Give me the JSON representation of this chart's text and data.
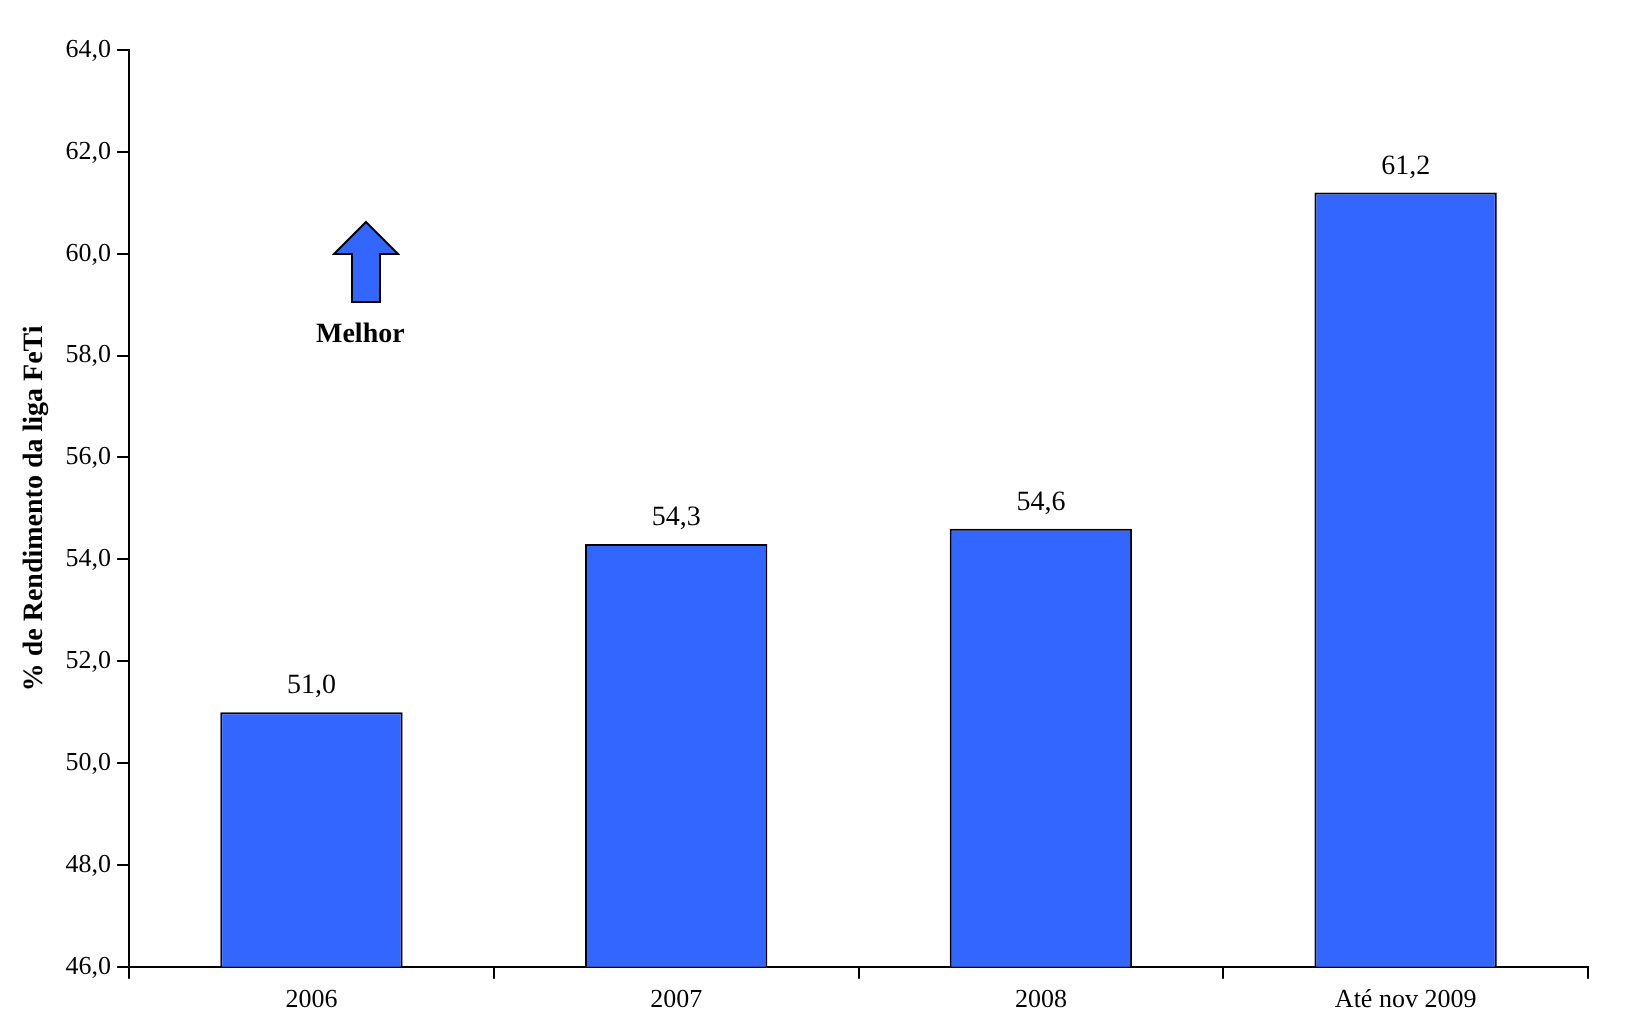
{
  "chart_data": {
    "type": "bar",
    "ylabel": "% de Rendimento da liga FeTi",
    "categories": [
      "2006",
      "2007",
      "2008",
      "Até nov 2009"
    ],
    "values": [
      51.0,
      54.3,
      54.6,
      61.2
    ],
    "value_labels": [
      "51,0",
      "54,3",
      "54,6",
      "61,2"
    ],
    "color": "#3366ff",
    "ylim": [
      46,
      64
    ],
    "yticks": [
      {
        "value": 46,
        "label": "46,0"
      },
      {
        "value": 48,
        "label": "48,0"
      },
      {
        "value": 50,
        "label": "50,0"
      },
      {
        "value": 52,
        "label": "52,0"
      },
      {
        "value": 54,
        "label": "54,0"
      },
      {
        "value": 56,
        "label": "56,0"
      },
      {
        "value": 58,
        "label": "58,0"
      },
      {
        "value": 60,
        "label": "60,0"
      },
      {
        "value": 62,
        "label": "62,0"
      },
      {
        "value": 64,
        "label": "64,0"
      }
    ],
    "annotations": [
      "Melhor"
    ],
    "grid": false,
    "legend": false
  }
}
